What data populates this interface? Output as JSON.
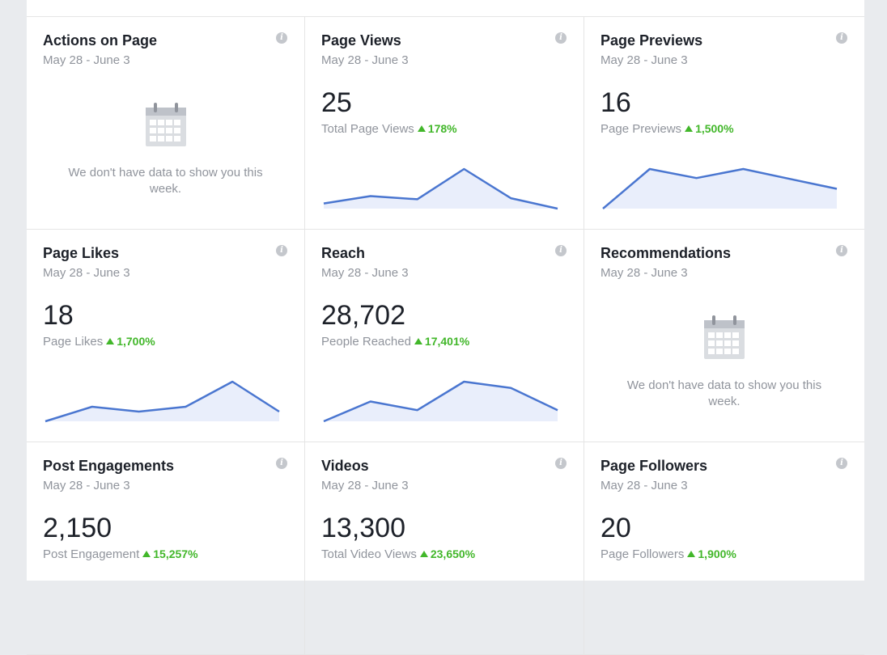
{
  "colors": {
    "accent": "#4a76d0",
    "fill": "#e9eefb",
    "positive": "#42b72a",
    "muted": "#90949c",
    "text": "#1d2129"
  },
  "cards": [
    {
      "title": "Actions on Page",
      "date": "May 28 - June 3",
      "info_icon": "info-icon",
      "empty": true,
      "empty_icon": "calendar-icon",
      "empty_text": "We don't have data to show you this week."
    },
    {
      "title": "Page Views",
      "date": "May 28 - June 3",
      "info_icon": "info-icon",
      "value": "25",
      "metric_label": "Total Page Views",
      "change": "178%",
      "trend": [
        5,
        12,
        9,
        38,
        10,
        0
      ]
    },
    {
      "title": "Page Previews",
      "date": "May 28 - June 3",
      "info_icon": "info-icon",
      "value": "16",
      "metric_label": "Page Previews",
      "change": "1,500%",
      "trend": [
        0,
        48,
        37,
        48,
        36,
        24
      ]
    },
    {
      "title": "Page Likes",
      "date": "May 28 - June 3",
      "info_icon": "info-icon",
      "value": "18",
      "metric_label": "Page Likes",
      "change": "1,700%",
      "trend": [
        0,
        18,
        12,
        18,
        49,
        12
      ]
    },
    {
      "title": "Reach",
      "date": "May 28 - June 3",
      "info_icon": "info-icon",
      "value": "28,702",
      "metric_label": "People Reached",
      "change": "17,401%",
      "trend": [
        0,
        16,
        9,
        32,
        27,
        9
      ]
    },
    {
      "title": "Recommendations",
      "date": "May 28 - June 3",
      "info_icon": "info-icon",
      "empty": true,
      "empty_icon": "calendar-icon",
      "empty_text": "We don't have data to show you this week."
    },
    {
      "title": "Post Engagements",
      "date": "May 28 - June 3",
      "info_icon": "info-icon",
      "value": "2,150",
      "metric_label": "Post Engagement",
      "change": "15,257%"
    },
    {
      "title": "Videos",
      "date": "May 28 - June 3",
      "info_icon": "info-icon",
      "value": "13,300",
      "metric_label": "Total Video Views",
      "change": "23,650%"
    },
    {
      "title": "Page Followers",
      "date": "May 28 - June 3",
      "info_icon": "info-icon",
      "value": "20",
      "metric_label": "Page Followers",
      "change": "1,900%"
    }
  ]
}
